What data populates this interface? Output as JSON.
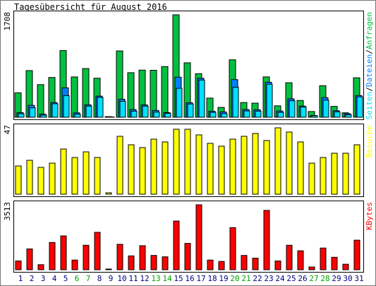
{
  "title": "Tagesübersicht für August 2016",
  "colors": {
    "background": "#ffffff",
    "panel_border": "#000000",
    "requests": "#00c040",
    "files": "#0080ff",
    "pages": "#00e0ff",
    "visits": "#ffff00",
    "kbytes": "#ff0000",
    "weekend_label": "#00a000",
    "weekday_label": "#000080"
  },
  "chart_data": [
    {
      "type": "bar",
      "panel": "hits",
      "ylabel_max": "1708",
      "ymax": 1708,
      "legend": [
        {
          "label": "Seiten",
          "color": "#00e0ff"
        },
        {
          "label": "Dateien",
          "color": "#0080ff"
        },
        {
          "label": "Anfragen",
          "color": "#00c040"
        }
      ],
      "categories": [
        "1",
        "2",
        "3",
        "4",
        "5",
        "6",
        "7",
        "8",
        "9",
        "10",
        "11",
        "12",
        "13",
        "14",
        "15",
        "16",
        "17",
        "18",
        "19",
        "20",
        "21",
        "22",
        "23",
        "24",
        "25",
        "26",
        "27",
        "28",
        "29",
        "30",
        "31"
      ],
      "series": [
        {
          "name": "Anfragen",
          "values": [
            407,
            778,
            544,
            663,
            1112,
            672,
            812,
            651,
            10,
            1106,
            743,
            786,
            783,
            845,
            1708,
            908,
            726,
            319,
            164,
            958,
            245,
            235,
            673,
            190,
            576,
            280,
            95,
            526,
            181,
            74,
            658
          ]
        },
        {
          "name": "Dateien",
          "values": [
            76,
            198,
            50,
            245,
            491,
            73,
            207,
            352,
            5,
            300,
            128,
            205,
            113,
            77,
            668,
            241,
            650,
            100,
            88,
            628,
            129,
            124,
            583,
            104,
            307,
            186,
            29,
            327,
            108,
            60,
            362
          ]
        },
        {
          "name": "Seiten",
          "values": [
            58,
            157,
            35,
            225,
            360,
            50,
            185,
            330,
            3,
            265,
            101,
            185,
            86,
            65,
            482,
            220,
            620,
            80,
            60,
            500,
            105,
            101,
            550,
            80,
            275,
            170,
            25,
            285,
            90,
            40,
            340
          ]
        }
      ]
    },
    {
      "type": "bar",
      "panel": "visits",
      "ylabel_max": "47",
      "ymax": 47,
      "legend": [
        {
          "label": "Besuche",
          "color": "#ffff00"
        }
      ],
      "categories": [
        "1",
        "2",
        "3",
        "4",
        "5",
        "6",
        "7",
        "8",
        "9",
        "10",
        "11",
        "12",
        "13",
        "14",
        "15",
        "16",
        "17",
        "18",
        "19",
        "20",
        "21",
        "22",
        "23",
        "24",
        "25",
        "26",
        "27",
        "28",
        "29",
        "30",
        "31"
      ],
      "values": [
        20,
        24,
        19,
        22,
        32,
        26,
        30,
        26,
        1,
        41,
        35,
        33,
        39,
        37,
        46,
        46,
        42,
        36,
        34,
        39,
        41,
        43,
        38,
        47,
        44,
        37,
        22,
        26,
        29,
        29,
        35
      ]
    },
    {
      "type": "bar",
      "panel": "kbytes",
      "ylabel_max": "3513",
      "ymax": 3513,
      "legend": [
        {
          "label": "KBytes",
          "color": "#ff0000"
        }
      ],
      "categories": [
        "1",
        "2",
        "3",
        "4",
        "5",
        "6",
        "7",
        "8",
        "9",
        "10",
        "11",
        "12",
        "13",
        "14",
        "15",
        "16",
        "17",
        "18",
        "19",
        "20",
        "21",
        "22",
        "23",
        "24",
        "25",
        "26",
        "27",
        "28",
        "29",
        "30",
        "31"
      ],
      "values": [
        475,
        1126,
        275,
        1476,
        1830,
        525,
        1326,
        2025,
        40,
        1376,
        750,
        1301,
        776,
        700,
        2634,
        1426,
        3513,
        525,
        450,
        2280,
        775,
        626,
        3210,
        475,
        1326,
        1026,
        150,
        1175,
        675,
        300,
        1600
      ]
    }
  ],
  "weekend_days": [
    "6",
    "7",
    "13",
    "14",
    "20",
    "21",
    "27",
    "28"
  ]
}
